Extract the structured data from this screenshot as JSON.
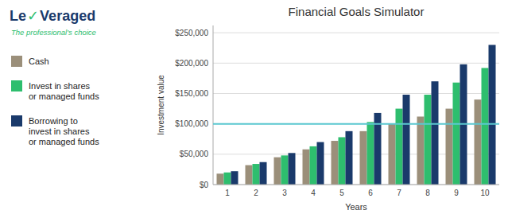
{
  "chart_data": {
    "type": "bar",
    "title": "Financial Goals Simulator",
    "x_label": "Years",
    "y_label": "Investment value",
    "categories": [
      1,
      2,
      3,
      4,
      5,
      6,
      7,
      8,
      9,
      10
    ],
    "series": [
      {
        "name": "Cash",
        "color": "#9b8f7a",
        "values": [
          18000,
          32000,
          45000,
          58000,
          72000,
          88000,
          100000,
          112000,
          125000,
          140000
        ]
      },
      {
        "name": "Invest in shares\nor managed funds",
        "color": "#2ebe6e",
        "values": [
          20000,
          34000,
          48000,
          63000,
          78000,
          103000,
          125000,
          148000,
          168000,
          192000
        ]
      },
      {
        "name": "Borrowing to\ninvest in shares\nor managed funds",
        "color": "#1a3a6b",
        "values": [
          22000,
          37000,
          52000,
          70000,
          88000,
          118000,
          148000,
          170000,
          198000,
          230000
        ]
      }
    ],
    "reference_lines": [
      {
        "value": 100000,
        "color": "#5bc8d0"
      }
    ],
    "ylim": [
      0,
      262000
    ],
    "yticks": [
      {
        "value": 0,
        "label": "$0"
      },
      {
        "value": 50000,
        "label": "$50,000"
      },
      {
        "value": 100000,
        "label": "$100,000"
      },
      {
        "value": 150000,
        "label": "$150,000"
      },
      {
        "value": 200000,
        "label": "$200,000"
      },
      {
        "value": 250000,
        "label": "$250,000"
      }
    ],
    "grid": true,
    "legend": "left",
    "annotations": [
      {
        "text": "Le",
        "color": "#1a3a6b"
      },
      {
        "text": "✓",
        "color": "#2ebe6e"
      },
      {
        "text": "Veraged",
        "color": "#1a3a6b"
      },
      {
        "text": "The professional's choice",
        "color": "#2ebe6e"
      }
    ]
  }
}
